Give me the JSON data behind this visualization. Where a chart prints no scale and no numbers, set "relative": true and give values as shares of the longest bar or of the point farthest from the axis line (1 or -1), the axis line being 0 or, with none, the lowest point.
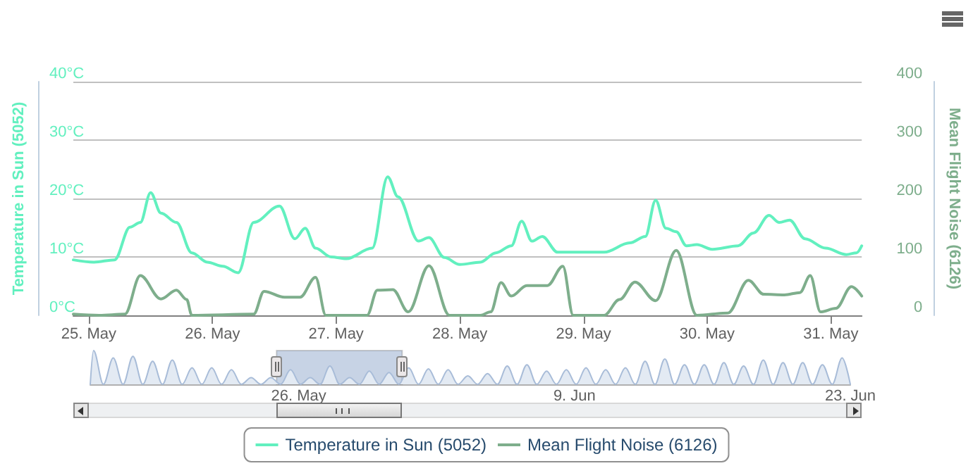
{
  "chart_data": [
    {
      "type": "line",
      "ylabel": "Temperature in Sun (5052)",
      "y2label": "Mean Flight Noise (6126)",
      "xlim": [
        "--05-24T21:00",
        "--05-31T06:00"
      ],
      "xticks": [
        {
          "value": "--05-25",
          "label": "25. May"
        },
        {
          "value": "--05-26",
          "label": "26. May"
        },
        {
          "value": "--05-27",
          "label": "27. May"
        },
        {
          "value": "--05-28",
          "label": "28. May"
        },
        {
          "value": "--05-29",
          "label": "29. May"
        },
        {
          "value": "--05-30",
          "label": "30. May"
        },
        {
          "value": "--05-31",
          "label": "31. May"
        }
      ],
      "ylim": [
        0,
        40
      ],
      "yticks": [
        {
          "value": 0,
          "label": "0°C"
        },
        {
          "value": 10,
          "label": "10°C"
        },
        {
          "value": 20,
          "label": "20°C"
        },
        {
          "value": 30,
          "label": "30°C"
        },
        {
          "value": 40,
          "label": "40°C"
        }
      ],
      "y2lim": [
        0,
        400
      ],
      "y2ticks": [
        0,
        100,
        200,
        300,
        400
      ],
      "grid": "y",
      "legend": "bottom",
      "marker": "none",
      "series": [
        {
          "name": "Temperature in Sun (5052)",
          "color": "#62f0bf",
          "x": [
            "--05-24T21:00",
            "--05-25T01:00",
            "--05-25T05:00",
            "--05-25T08:00",
            "--05-25T10:00",
            "--05-25T12:00",
            "--05-25T14:00",
            "--05-25T17:00",
            "--05-25T20:00",
            "--05-25T23:00",
            "--05-26T02:00",
            "--05-26T05:00",
            "--05-26T08:00",
            "--05-26T13:00",
            "--05-26T16:00",
            "--05-26T18:00",
            "--05-26T20:00",
            "--05-26T23:00",
            "--05-27T02:00",
            "--05-27T07:00",
            "--05-27T10:00",
            "--05-27T12:00",
            "--05-27T16:00",
            "--05-27T18:00",
            "--05-27T21:00",
            "--05-28T00:00",
            "--05-28T04:00",
            "--05-28T07:00",
            "--05-28T10:00",
            "--05-28T12:00",
            "--05-28T14:00",
            "--05-28T16:00",
            "--05-28T19:00",
            "--05-29T00:00",
            "--05-29T04:00",
            "--05-29T09:00",
            "--05-29T12:00",
            "--05-29T14:00",
            "--05-29T16:00",
            "--05-29T18:00",
            "--05-29T20:00",
            "--05-29T22:00",
            "--05-30T01:00",
            "--05-30T06:00",
            "--05-30T09:00",
            "--05-30T12:00",
            "--05-30T14:00",
            "--05-30T16:00",
            "--05-30T19:00",
            "--05-30T23:00",
            "--05-31T03:00",
            "--05-31T05:00",
            "--05-31T06:00"
          ],
          "values": [
            9.5,
            9.1,
            9.5,
            15.1,
            15.9,
            21.0,
            17.5,
            15.9,
            10.7,
            9.1,
            8.4,
            7.3,
            15.9,
            18.7,
            13.1,
            14.9,
            11.5,
            10.0,
            9.7,
            11.5,
            23.7,
            20.3,
            12.7,
            13.3,
            9.9,
            8.7,
            9.1,
            10.7,
            11.9,
            16.1,
            12.7,
            13.5,
            10.8,
            10.8,
            10.8,
            12.4,
            13.5,
            19.7,
            14.9,
            14.3,
            11.9,
            12.1,
            11.3,
            11.9,
            14.1,
            17.1,
            15.9,
            16.3,
            13.1,
            11.5,
            10.4,
            10.7,
            11.9
          ]
        },
        {
          "name": "Mean Flight Noise (6126)",
          "color": "#7eae8c",
          "axis": "y2",
          "x": [
            "--05-24T21:00",
            "--05-25T02:00",
            "--05-25T07:00",
            "--05-25T10:00",
            "--05-25T14:00",
            "--05-25T17:00",
            "--05-25T19:00",
            "--05-25T20:00",
            "--05-26T08:00",
            "--05-26T10:00",
            "--05-26T14:00",
            "--05-26T17:00",
            "--05-26T20:00",
            "--05-26T22:00",
            "--05-27T06:00",
            "--05-27T08:00",
            "--05-27T11:00",
            "--05-27T14:00",
            "--05-27T18:00",
            "--05-27T22:00",
            "--05-28T04:00",
            "--05-28T06:00",
            "--05-28T08:00",
            "--05-28T10:00",
            "--05-28T13:00",
            "--05-28T17:00",
            "--05-28T20:00",
            "--05-28T22:00",
            "--05-29T04:00",
            "--05-29T07:00",
            "--05-29T10:00",
            "--05-29T14:00",
            "--05-29T18:00",
            "--05-29T22:00",
            "--05-30T04:00",
            "--05-30T08:00",
            "--05-30T11:00",
            "--05-30T15:00",
            "--05-30T18:00",
            "--05-30T20:00",
            "--05-30T22:00",
            "--05-31T01:00",
            "--05-31T04:00",
            "--05-31T06:00"
          ],
          "values": [
            2,
            0,
            2,
            68,
            28,
            43,
            27,
            0,
            2,
            41,
            31,
            31,
            65,
            0,
            0,
            43,
            44,
            6,
            85,
            0,
            0,
            6,
            56,
            33,
            51,
            51,
            84,
            0,
            0,
            27,
            57,
            25,
            111,
            0,
            4,
            60,
            36,
            35,
            39,
            68,
            6,
            12,
            49,
            33
          ]
        }
      ]
    },
    {
      "type": "area",
      "relative": true,
      "color": "#a8bcd8",
      "marker": "none",
      "tick_labels": "x",
      "bands": [
        {
          "axis": "x",
          "from": "--05-24T21:00",
          "to": "--05-31T06:00",
          "color": "#466eaa"
        }
      ],
      "xlim": [
        "--05-15T10:00",
        "--06-23T00:00"
      ],
      "xticks": [
        {
          "value": "--05-26",
          "label": "26. May"
        },
        {
          "value": "--06-09",
          "label": "9. Jun"
        },
        {
          "value": "--06-23",
          "label": "23. Jun"
        }
      ],
      "x": [
        "--05-15T10:00",
        "--05-15T14:00",
        "--05-16T02:00",
        "--05-16T14:00",
        "--05-17T02:00",
        "--05-17T14:00",
        "--05-18T02:00",
        "--05-18T14:00",
        "--05-19T02:00",
        "--05-19T14:00",
        "--05-20T02:00",
        "--05-20T14:00",
        "--05-21T02:00",
        "--05-21T14:00",
        "--05-22T02:00",
        "--05-22T14:00",
        "--05-23T02:00",
        "--05-23T14:00",
        "--05-24T02:00",
        "--05-24T14:00",
        "--05-25T02:00",
        "--05-25T14:00",
        "--05-26T02:00",
        "--05-26T14:00",
        "--05-27T02:00",
        "--05-27T14:00",
        "--05-28T02:00",
        "--05-28T14:00",
        "--05-29T02:00",
        "--05-29T14:00",
        "--05-30T02:00",
        "--05-30T14:00",
        "--05-31T02:00",
        "--05-31T14:00",
        "--06-01T02:00",
        "--06-01T14:00",
        "--06-02T02:00",
        "--06-02T14:00",
        "--06-03T02:00",
        "--06-03T14:00",
        "--06-04T02:00",
        "--06-04T14:00",
        "--06-05T02:00",
        "--06-05T14:00",
        "--06-06T02:00",
        "--06-06T14:00",
        "--06-07T02:00",
        "--06-07T14:00",
        "--06-08T02:00",
        "--06-08T14:00",
        "--06-09T02:00",
        "--06-09T14:00",
        "--06-10T02:00",
        "--06-10T14:00",
        "--06-11T02:00",
        "--06-11T14:00",
        "--06-12T02:00",
        "--06-12T14:00",
        "--06-13T02:00",
        "--06-13T14:00",
        "--06-14T02:00",
        "--06-14T14:00",
        "--06-15T02:00",
        "--06-15T14:00",
        "--06-16T02:00",
        "--06-16T14:00",
        "--06-17T02:00",
        "--06-17T14:00",
        "--06-18T02:00",
        "--06-18T14:00",
        "--06-19T02:00",
        "--06-19T14:00",
        "--06-20T02:00",
        "--06-20T14:00",
        "--06-21T02:00",
        "--06-21T14:00",
        "--06-22T02:00",
        "--06-22T14:00",
        "--06-23T00:00"
      ],
      "values": [
        0,
        1.0,
        0,
        0.78,
        0,
        0.83,
        0,
        0.68,
        0,
        0.72,
        0,
        0.49,
        0,
        0.49,
        0,
        0.43,
        0,
        0.2,
        0,
        0.2,
        0,
        0.43,
        0,
        0.2,
        0,
        0.54,
        0,
        0.2,
        0,
        0.39,
        0,
        0.35,
        0,
        0.49,
        0,
        0.46,
        0,
        0.43,
        0,
        0.25,
        0,
        0.32,
        0,
        0.54,
        0,
        0.58,
        0,
        0.39,
        0,
        0.43,
        0,
        0.49,
        0,
        0.43,
        0,
        0.49,
        0,
        0.68,
        0,
        0.75,
        0,
        0.58,
        0,
        0.58,
        0,
        0.64,
        0,
        0.54,
        0,
        0.72,
        0,
        0.64,
        0,
        0.64,
        0,
        0.58,
        0,
        0.78,
        0
      ]
    }
  ]
}
